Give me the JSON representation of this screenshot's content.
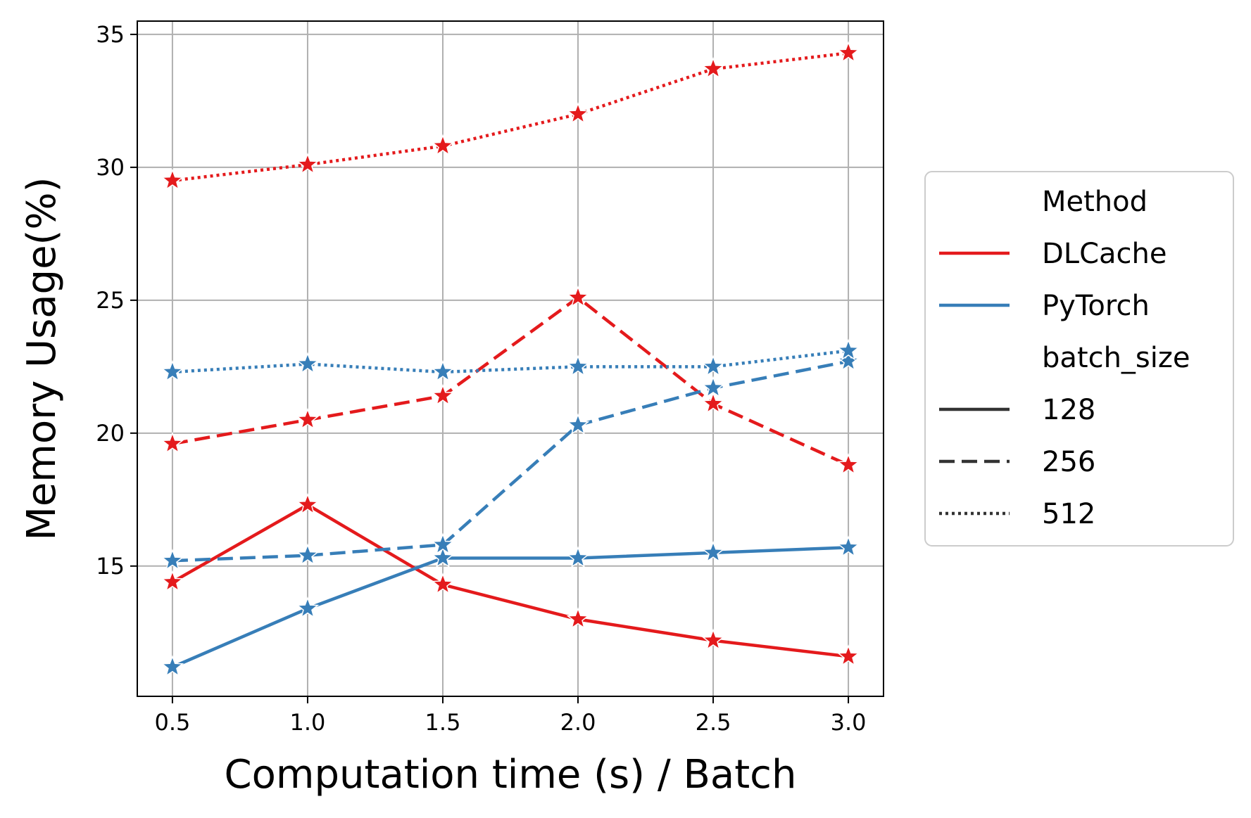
{
  "chart_data": {
    "type": "line",
    "title": "",
    "xlabel": "Computation time (s) / Batch",
    "ylabel": "Memory Usage(%)",
    "xlim": [
      0.37,
      3.13
    ],
    "ylim": [
      10.1,
      35.5
    ],
    "xticks": [
      0.5,
      1.0,
      1.5,
      2.0,
      2.5,
      3.0
    ],
    "xtick_labels": [
      "0.5",
      "1.0",
      "1.5",
      "2.0",
      "2.5",
      "3.0"
    ],
    "yticks": [
      15,
      20,
      25,
      30,
      35
    ],
    "ytick_labels": [
      "15",
      "20",
      "25",
      "30",
      "35"
    ],
    "grid": true,
    "marker": "star",
    "x": [
      0.5,
      1.0,
      1.5,
      2.0,
      2.5,
      3.0
    ],
    "series": [
      {
        "method": "DLCache",
        "batch_size": "128",
        "color": "#e41a1c",
        "dash": "solid",
        "values": [
          14.4,
          17.3,
          14.3,
          13.0,
          12.2,
          11.6
        ]
      },
      {
        "method": "DLCache",
        "batch_size": "256",
        "color": "#e41a1c",
        "dash": "dashed",
        "values": [
          19.6,
          20.5,
          21.4,
          25.1,
          21.1,
          18.8
        ]
      },
      {
        "method": "DLCache",
        "batch_size": "512",
        "color": "#e41a1c",
        "dash": "dotted",
        "values": [
          29.5,
          30.1,
          30.8,
          32.0,
          33.7,
          34.3
        ]
      },
      {
        "method": "PyTorch",
        "batch_size": "128",
        "color": "#377eb8",
        "dash": "solid",
        "values": [
          11.2,
          13.4,
          15.3,
          15.3,
          15.5,
          15.7
        ]
      },
      {
        "method": "PyTorch",
        "batch_size": "256",
        "color": "#377eb8",
        "dash": "dashed",
        "values": [
          15.2,
          15.4,
          15.8,
          20.3,
          21.7,
          22.7
        ]
      },
      {
        "method": "PyTorch",
        "batch_size": "512",
        "color": "#377eb8",
        "dash": "dotted",
        "values": [
          22.3,
          22.6,
          22.3,
          22.5,
          22.5,
          23.1
        ]
      }
    ],
    "legend": {
      "placement": "right-outside",
      "entries": [
        {
          "label": "Method",
          "kind": "header"
        },
        {
          "label": "DLCache",
          "kind": "color",
          "color": "#e41a1c",
          "dash": "solid"
        },
        {
          "label": "PyTorch",
          "kind": "color",
          "color": "#377eb8",
          "dash": "solid"
        },
        {
          "label": "batch_size",
          "kind": "header"
        },
        {
          "label": "128",
          "kind": "style",
          "color": "#333333",
          "dash": "solid"
        },
        {
          "label": "256",
          "kind": "style",
          "color": "#333333",
          "dash": "dashed"
        },
        {
          "label": "512",
          "kind": "style",
          "color": "#333333",
          "dash": "dotted"
        }
      ]
    }
  }
}
